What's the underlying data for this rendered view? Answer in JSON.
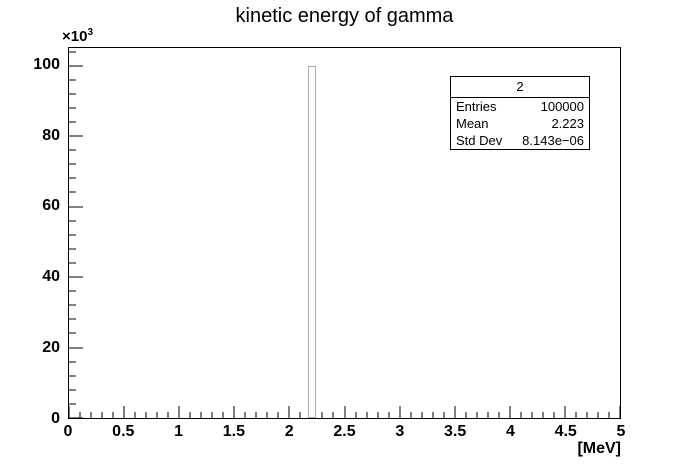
{
  "title": "kinetic energy of gamma",
  "colors": {
    "background": "#ffffff",
    "axis": "#000000",
    "bar_stroke": "#adadad",
    "bar_fill": "#ffffff"
  },
  "stats_box": {
    "header": "2",
    "rows": [
      {
        "label": "Entries",
        "value": "100000"
      },
      {
        "label": "Mean",
        "value": "2.223"
      },
      {
        "label": "Std Dev",
        "value": "8.143e−06"
      }
    ]
  },
  "chart_data": {
    "type": "bar",
    "title": "kinetic energy of gamma",
    "xlabel": "[MeV]",
    "ylabel": "",
    "grid": false,
    "legend": false,
    "x_axis": {
      "min": 0,
      "max": 5,
      "major_step": 0.5,
      "minor_step": 0.1,
      "tick_labels": [
        "0",
        "0.5",
        "1",
        "1.5",
        "2",
        "2.5",
        "3",
        "3.5",
        "4",
        "4.5",
        "5"
      ],
      "unit_label": "[MeV]"
    },
    "y_axis": {
      "min": 0,
      "max": 105,
      "major_step": 20,
      "minor_step": 4,
      "tick_labels": [
        "0",
        "20",
        "40",
        "60",
        "80",
        "100"
      ],
      "scale_base": "×10",
      "scale_exp": "3"
    },
    "bins": [
      {
        "x_low": 2.166,
        "x_high": 2.242,
        "count": 100
      }
    ],
    "entries": 100000,
    "mean": 2.223,
    "std_dev": 8.143e-06
  }
}
